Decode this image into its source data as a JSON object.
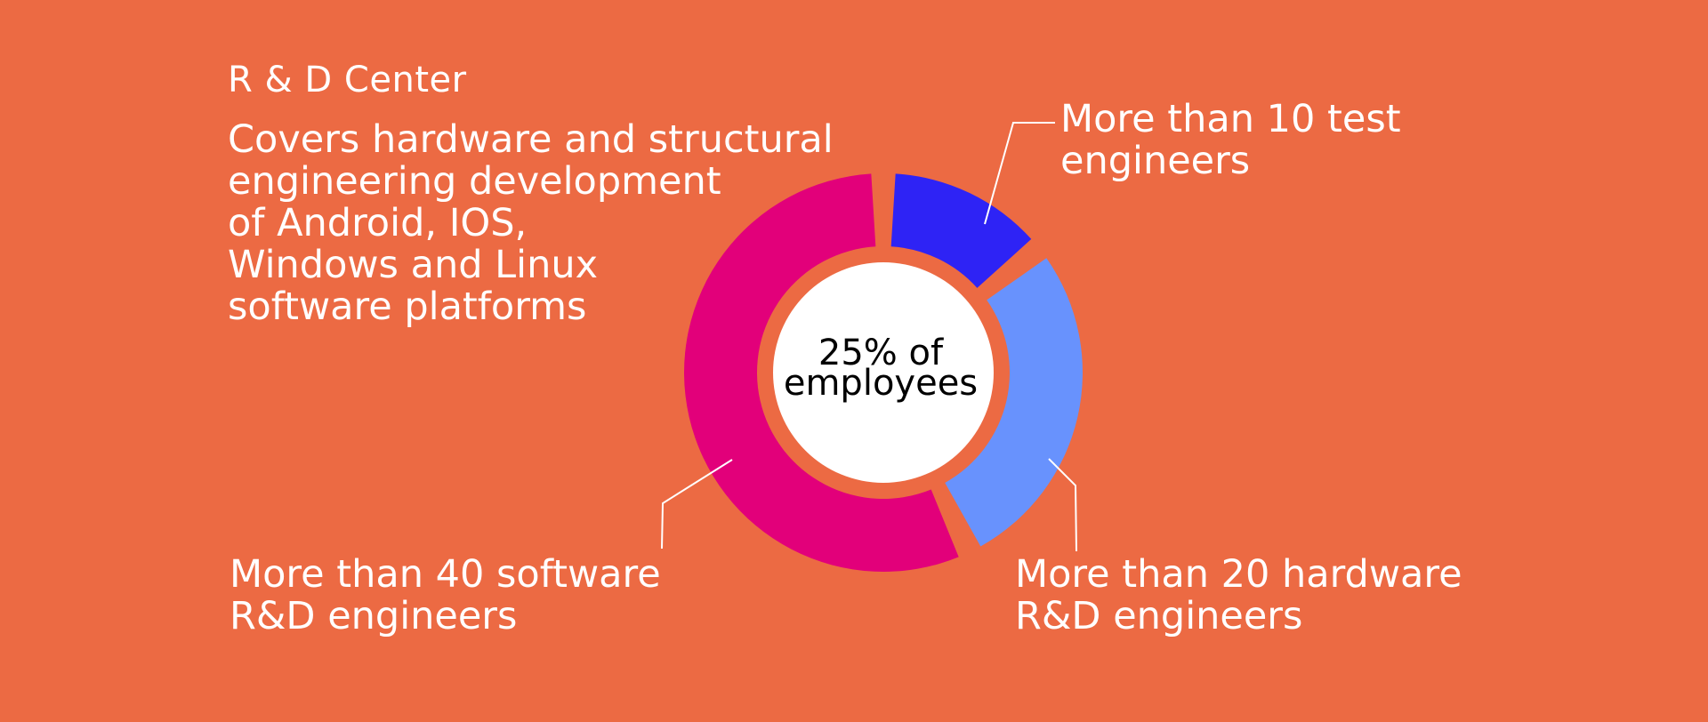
{
  "header": {
    "title": "R & D Center",
    "description": "Covers hardware and structural\nengineering development\nof Android, IOS,\nWindows and Linux\nsoftware platforms"
  },
  "chart_data": {
    "type": "pie",
    "donut": true,
    "center_label": "25% of\nemployees",
    "slices": [
      {
        "label": "More than 10 test\nengineers",
        "value": 10,
        "color": "#2E23F5"
      },
      {
        "label": "More than 20 hardware\nR&D engineers",
        "value": 20,
        "color": "#6892FD"
      },
      {
        "label": "More than 40 software\nR&D engineers",
        "value": 40,
        "color": "#E2007A"
      }
    ]
  },
  "colors": {
    "background": "#EC6A43",
    "center_fill": "#FFFFFF",
    "leader_line": "#FFFFFF"
  }
}
